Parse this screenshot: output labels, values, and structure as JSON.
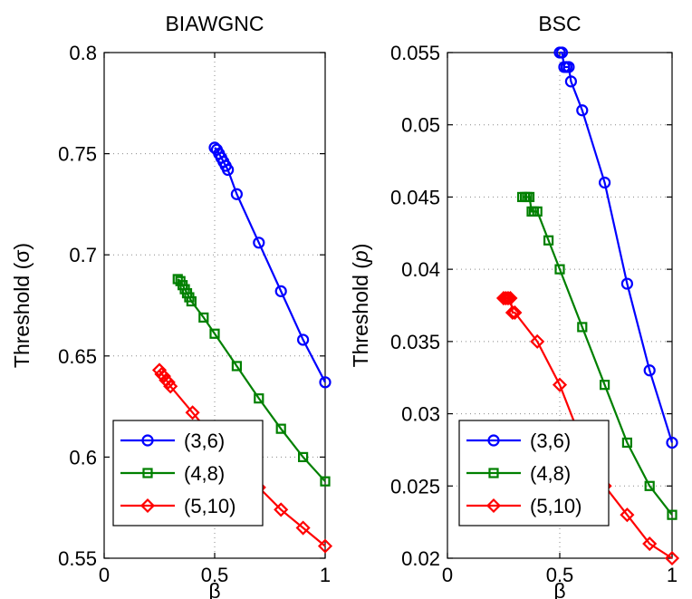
{
  "chart_data": [
    {
      "type": "line",
      "title": "BIAWGNC",
      "xlabel": "β",
      "ylabel_parts": [
        "Threshold (",
        "σ",
        ")"
      ],
      "xlim": [
        0,
        1
      ],
      "ylim": [
        0.55,
        0.8
      ],
      "xticks": [
        "0",
        "0.5",
        "1"
      ],
      "yticks": [
        "0.55",
        "0.6",
        "0.65",
        "0.7",
        "0.75",
        "0.8"
      ],
      "grid": true,
      "legend_position": "bottom-left",
      "series": [
        {
          "name": "(3,6)",
          "color": "#0000ff",
          "marker": "circle",
          "x": [
            0.5,
            0.51,
            0.52,
            0.53,
            0.54,
            0.55,
            0.56,
            0.6,
            0.7,
            0.8,
            0.9,
            1.0
          ],
          "y": [
            0.753,
            0.752,
            0.75,
            0.748,
            0.746,
            0.744,
            0.742,
            0.73,
            0.706,
            0.682,
            0.658,
            0.637
          ]
        },
        {
          "name": "(4,8)",
          "color": "#008000",
          "marker": "square",
          "x": [
            0.333,
            0.345,
            0.355,
            0.365,
            0.375,
            0.385,
            0.395,
            0.45,
            0.5,
            0.6,
            0.7,
            0.8,
            0.9,
            1.0
          ],
          "y": [
            0.688,
            0.687,
            0.685,
            0.683,
            0.681,
            0.679,
            0.677,
            0.669,
            0.661,
            0.645,
            0.629,
            0.614,
            0.6,
            0.588
          ]
        },
        {
          "name": "(5,10)",
          "color": "#ff0000",
          "marker": "diamond",
          "x": [
            0.25,
            0.26,
            0.27,
            0.28,
            0.29,
            0.3,
            0.4,
            0.5,
            0.6,
            0.7,
            0.8,
            0.9,
            1.0
          ],
          "y": [
            0.643,
            0.641,
            0.64,
            0.638,
            0.637,
            0.635,
            0.622,
            0.609,
            0.597,
            0.585,
            0.574,
            0.565,
            0.556
          ]
        }
      ]
    },
    {
      "type": "line",
      "title": "BSC",
      "xlabel": "β",
      "ylabel_parts": [
        "Threshold (",
        "p",
        ")"
      ],
      "xlim": [
        0,
        1
      ],
      "ylim": [
        0.02,
        0.055
      ],
      "xticks": [
        "0",
        "0.5",
        "1"
      ],
      "yticks": [
        "0.02",
        "0.025",
        "0.03",
        "0.035",
        "0.04",
        "0.045",
        "0.05",
        "0.055"
      ],
      "grid": true,
      "legend_position": "bottom-left",
      "series": [
        {
          "name": "(3,6)",
          "color": "#0000ff",
          "marker": "circle",
          "x": [
            0.5,
            0.51,
            0.52,
            0.53,
            0.54,
            0.55,
            0.6,
            0.7,
            0.8,
            0.9,
            1.0
          ],
          "y": [
            0.055,
            0.055,
            0.054,
            0.054,
            0.054,
            0.053,
            0.051,
            0.046,
            0.039,
            0.033,
            0.028
          ]
        },
        {
          "name": "(4,8)",
          "color": "#008000",
          "marker": "square",
          "x": [
            0.333,
            0.345,
            0.355,
            0.365,
            0.375,
            0.385,
            0.4,
            0.45,
            0.5,
            0.6,
            0.7,
            0.8,
            0.9,
            1.0
          ],
          "y": [
            0.045,
            0.045,
            0.045,
            0.045,
            0.044,
            0.044,
            0.044,
            0.042,
            0.04,
            0.036,
            0.032,
            0.028,
            0.025,
            0.023
          ]
        },
        {
          "name": "(5,10)",
          "color": "#ff0000",
          "marker": "diamond",
          "x": [
            0.25,
            0.26,
            0.27,
            0.28,
            0.29,
            0.3,
            0.4,
            0.5,
            0.6,
            0.7,
            0.8,
            0.9,
            1.0
          ],
          "y": [
            0.038,
            0.038,
            0.038,
            0.038,
            0.037,
            0.037,
            0.035,
            0.032,
            0.028,
            0.025,
            0.023,
            0.021,
            0.02
          ]
        }
      ]
    }
  ]
}
